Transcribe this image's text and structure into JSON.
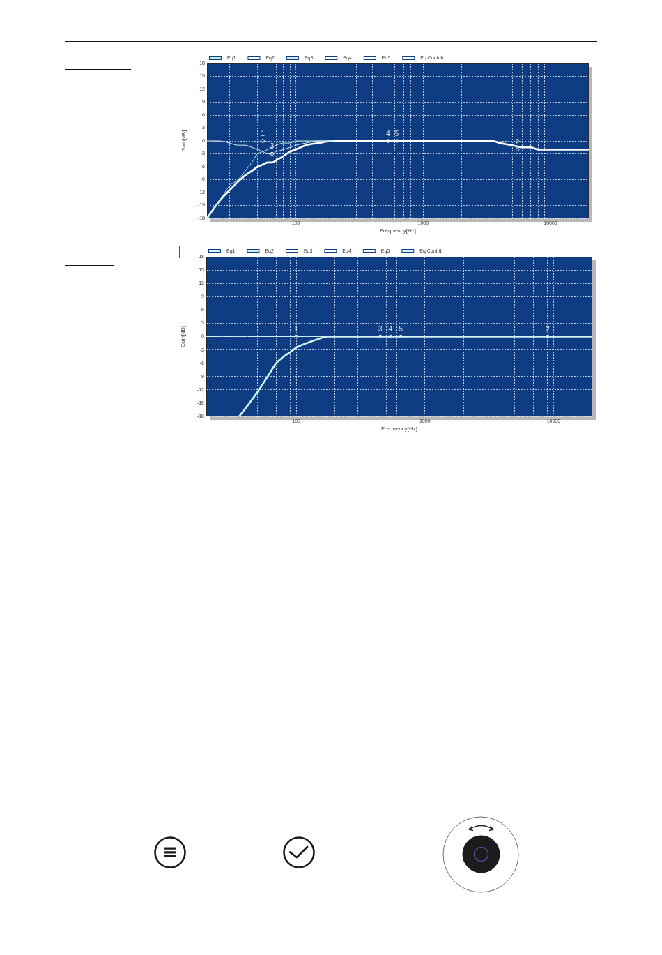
{
  "chart_data": [
    {
      "type": "line",
      "xlabel": "Frequency[Hz]",
      "ylabel": "Gain[dB]",
      "log": "x",
      "grid": true,
      "legend": "top left",
      "x": [
        20,
        25,
        30,
        35,
        40,
        45,
        50,
        55,
        60,
        65,
        70,
        80,
        90,
        100,
        120,
        150,
        200,
        300,
        500,
        1000,
        2000,
        2800,
        3500,
        4000,
        5000,
        6000,
        7000,
        8000,
        9000,
        10000,
        12000,
        15000,
        20000
      ],
      "xlim": [
        20,
        20000
      ],
      "ylim": [
        -18,
        18
      ],
      "xticks": [
        {
          "value": 30,
          "label": null
        },
        {
          "value": 40,
          "label": null
        },
        {
          "value": 50,
          "label": null
        },
        {
          "value": 60,
          "label": null
        },
        {
          "value": 70,
          "label": null
        },
        {
          "value": 80,
          "label": null
        },
        {
          "value": 90,
          "label": null
        },
        100,
        {
          "value": 200,
          "label": null
        },
        {
          "value": 300,
          "label": null
        },
        {
          "value": 400,
          "label": null
        },
        {
          "value": 500,
          "label": null
        },
        {
          "value": 600,
          "label": null
        },
        {
          "value": 700,
          "label": null
        },
        {
          "value": 800,
          "label": null
        },
        1000,
        {
          "value": 2000,
          "label": null
        },
        {
          "value": 3000,
          "label": null
        },
        {
          "value": 5000,
          "label": null
        },
        {
          "value": 6000,
          "label": null
        },
        {
          "value": 7000,
          "label": null
        },
        {
          "value": 8000,
          "label": null
        },
        {
          "value": 9000,
          "label": null
        },
        10000
      ],
      "yticks": [
        -18,
        -15,
        -12,
        -9,
        -6,
        -3,
        0,
        3,
        6,
        9,
        12,
        15,
        18
      ],
      "series": [
        {
          "name": "Eq1",
          "color": "#b4ecd4",
          "values": [
            -18,
            -14,
            -10.5,
            -9,
            -7,
            -5,
            -3,
            -2.5,
            -2,
            -1.5,
            -1,
            -0.5,
            -0.5,
            0,
            0,
            0,
            0,
            null,
            null,
            null,
            null,
            null,
            null,
            null,
            null,
            null,
            null,
            null,
            null,
            null,
            null,
            null,
            null
          ]
        },
        {
          "name": "Eq2",
          "color": "#ffffff",
          "values": [
            null,
            null,
            null,
            null,
            null,
            null,
            null,
            null,
            null,
            null,
            null,
            null,
            null,
            null,
            null,
            null,
            null,
            null,
            null,
            null,
            null,
            null,
            null,
            null,
            null,
            null,
            null,
            null,
            null,
            null,
            null,
            null,
            null
          ]
        },
        {
          "name": "Eq3",
          "color": "#dce6f5",
          "values": [
            0,
            0,
            -0.5,
            -1,
            -1,
            -1.5,
            -2,
            -2.5,
            -3,
            -3,
            -2.5,
            -2,
            -1.5,
            -1,
            -0.5,
            0,
            0,
            null,
            null,
            null,
            null,
            null,
            null,
            null,
            null,
            null,
            null,
            null,
            null,
            null,
            null,
            null,
            null
          ]
        },
        {
          "name": "Eq4",
          "color": "#ffffff",
          "values": [
            null,
            null,
            null,
            null,
            null,
            null,
            null,
            null,
            null,
            null,
            null,
            null,
            null,
            null,
            null,
            null,
            null,
            null,
            null,
            null,
            null,
            null,
            null,
            null,
            null,
            null,
            null,
            null,
            null,
            null,
            null,
            null,
            null
          ]
        },
        {
          "name": "Eq5",
          "color": "#ffffff",
          "values": [
            null,
            null,
            null,
            null,
            null,
            null,
            null,
            null,
            null,
            null,
            null,
            null,
            null,
            null,
            null,
            null,
            null,
            null,
            null,
            null,
            null,
            null,
            null,
            null,
            null,
            null,
            null,
            null,
            null,
            null,
            null,
            null,
            null
          ]
        },
        {
          "name": "Eq Contrib",
          "color": "#ffffff",
          "values": [
            -18,
            -14,
            -11.5,
            -9.5,
            -8,
            -7,
            -6,
            -5.5,
            -5,
            -5,
            -4.5,
            -3.5,
            -2.5,
            -2,
            -1,
            -0.5,
            0,
            0,
            0,
            0,
            0,
            0,
            0,
            -0.5,
            -1,
            -1.5,
            -1.5,
            -2,
            -2,
            -2,
            -2,
            -2,
            -2
          ]
        }
      ],
      "annotations": [
        {
          "text": "1",
          "x": 55,
          "y": 0
        },
        {
          "text": "3",
          "x": 65,
          "y": -3
        },
        {
          "text": "4",
          "x": 530,
          "y": 0
        },
        {
          "text": "5",
          "x": 620,
          "y": 0
        },
        {
          "text": "2",
          "x": 5500,
          "y": -2
        }
      ]
    },
    {
      "type": "line",
      "xlabel": "Frequency[Hz]",
      "ylabel": "Gain[dB]",
      "log": "x",
      "grid": true,
      "legend": "top left",
      "x": [
        20,
        36,
        42,
        50,
        60,
        70,
        80,
        90,
        100,
        120,
        150,
        175,
        200,
        250,
        1000,
        20000
      ],
      "xlim": [
        20,
        20000
      ],
      "ylim": [
        -18,
        18
      ],
      "xticks": [
        {
          "value": 30,
          "label": null
        },
        {
          "value": 40,
          "label": null
        },
        {
          "value": 50,
          "label": null
        },
        {
          "value": 60,
          "label": null
        },
        {
          "value": 70,
          "label": null
        },
        {
          "value": 80,
          "label": null
        },
        {
          "value": 90,
          "label": null
        },
        100,
        {
          "value": 200,
          "label": null
        },
        {
          "value": 300,
          "label": null
        },
        {
          "value": 400,
          "label": null
        },
        {
          "value": 500,
          "label": null
        },
        {
          "value": 600,
          "label": null
        },
        1000,
        {
          "value": 2000,
          "label": null
        },
        {
          "value": 3000,
          "label": null
        },
        {
          "value": 4000,
          "label": null
        },
        {
          "value": 5000,
          "label": null
        },
        {
          "value": 6000,
          "label": null
        },
        {
          "value": 7000,
          "label": null
        },
        {
          "value": 8000,
          "label": null
        },
        {
          "value": 9000,
          "label": null
        },
        10000
      ],
      "yticks": [
        -18,
        -15,
        -12,
        -9,
        -6,
        -3,
        0,
        3,
        6,
        9,
        12,
        15,
        18
      ],
      "series": [
        {
          "name": "Eq1",
          "color": "#d4f6f4",
          "values": [
            null,
            null,
            null,
            null,
            null,
            null,
            null,
            null,
            null,
            null,
            null,
            null,
            null,
            null,
            null,
            null
          ]
        },
        {
          "name": "Eq2",
          "color": "#cdeff0",
          "values": [
            0,
            0,
            0,
            0,
            0,
            0,
            0,
            0,
            0,
            0,
            0,
            0,
            null,
            null,
            null,
            null
          ]
        },
        {
          "name": "Eq3",
          "color": "#ffffff",
          "values": [
            null,
            null,
            null,
            null,
            null,
            null,
            null,
            null,
            null,
            null,
            null,
            null,
            null,
            null,
            null,
            null
          ]
        },
        {
          "name": "Eq4",
          "color": "#ffffff",
          "values": [
            null,
            null,
            null,
            null,
            null,
            null,
            null,
            null,
            null,
            null,
            null,
            null,
            null,
            null,
            null,
            null
          ]
        },
        {
          "name": "Eq5",
          "color": "#ffffff",
          "values": [
            null,
            null,
            null,
            null,
            null,
            null,
            null,
            null,
            null,
            null,
            null,
            null,
            null,
            null,
            null,
            null
          ]
        },
        {
          "name": "Eq Contrib",
          "color": "#d4f6f4",
          "values": [
            null,
            -18,
            -15.5,
            -12.5,
            -9,
            -6,
            -4.5,
            -3.5,
            -2.5,
            -1.5,
            -0.5,
            0,
            0,
            0,
            0,
            0
          ]
        }
      ],
      "annotations": [
        {
          "text": "1",
          "x": 100,
          "y": 0
        },
        {
          "text": "3",
          "x": 450,
          "y": 0
        },
        {
          "text": "4",
          "x": 540,
          "y": 0
        },
        {
          "text": "5",
          "x": 650,
          "y": 0
        },
        {
          "text": "2",
          "x": 9000,
          "y": 0
        }
      ]
    }
  ]
}
